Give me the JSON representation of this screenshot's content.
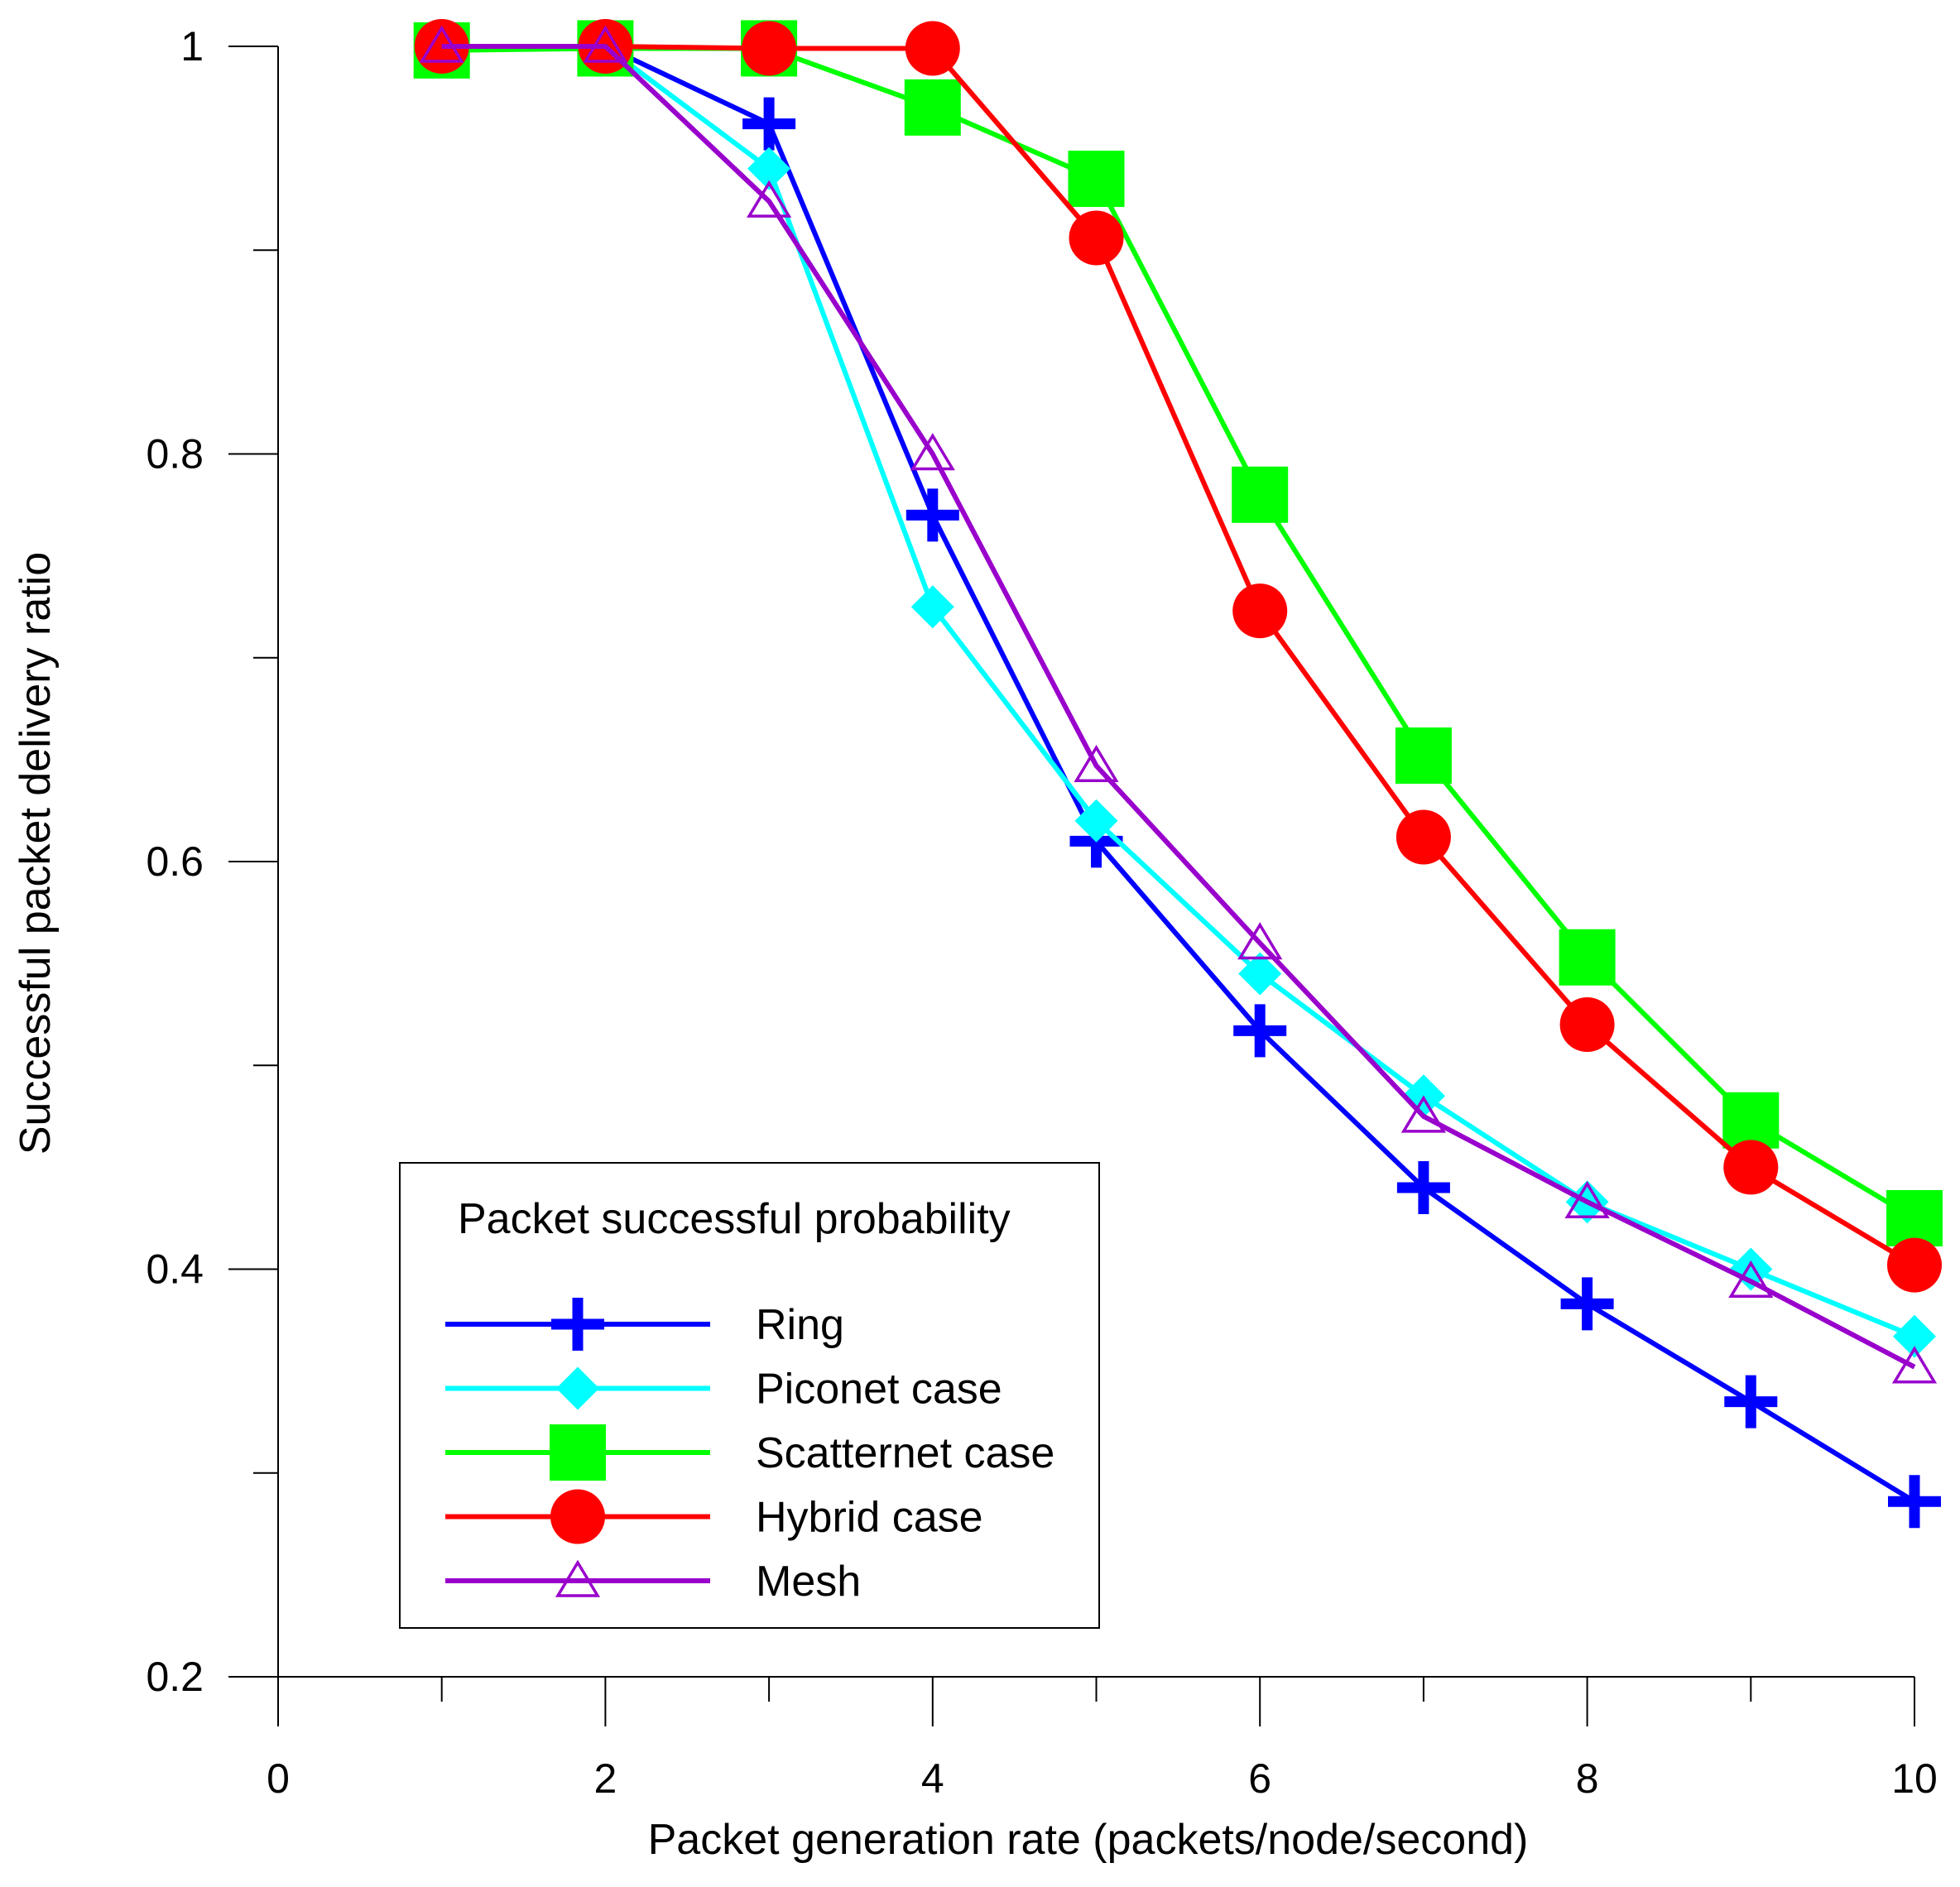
{
  "chart_data": {
    "type": "line",
    "title": "",
    "xlabel": "Packet generation rate (packets/node/second)",
    "ylabel": "Successful packet  delivery ratio",
    "xlim": [
      0,
      10
    ],
    "ylim": [
      0.2,
      1.0
    ],
    "xticks": [
      0,
      2,
      4,
      6,
      8,
      10
    ],
    "xticks_minor": [
      1,
      3,
      5,
      7,
      9
    ],
    "yticks": [
      0.2,
      0.4,
      0.6,
      0.8,
      1
    ],
    "ytick_labels": [
      "0.2",
      "0.4",
      "0.6",
      "0.8",
      "1"
    ],
    "yticks_minor": [
      0.3,
      0.5,
      0.7,
      0.9
    ],
    "grid": false,
    "x": [
      1,
      2,
      3,
      4,
      5,
      6,
      7,
      8,
      9,
      10
    ],
    "legend": {
      "title": "Packet successful probability",
      "placement": "bottom-left"
    },
    "series": [
      {
        "name": "Ring",
        "color": "#0000ff",
        "marker": "plus",
        "values": [
          1.0,
          1.0,
          0.962,
          0.77,
          0.61,
          0.517,
          0.44,
          0.383,
          0.335,
          0.286
        ]
      },
      {
        "name": "Piconet case",
        "color": "#00ffff",
        "marker": "diamond",
        "values": [
          1.0,
          1.0,
          0.94,
          0.725,
          0.62,
          0.545,
          0.485,
          0.433,
          0.4,
          0.367
        ]
      },
      {
        "name": "Scatternet case",
        "color": "#00ff00",
        "marker": "square",
        "values": [
          0.998,
          0.999,
          0.999,
          0.97,
          0.935,
          0.78,
          0.652,
          0.553,
          0.473,
          0.425
        ]
      },
      {
        "name": "Hybrid case",
        "color": "#ff0000",
        "marker": "circle",
        "values": [
          1.0,
          1.0,
          0.999,
          0.999,
          0.906,
          0.723,
          0.612,
          0.52,
          0.45,
          0.402
        ]
      },
      {
        "name": "Mesh",
        "color": "#9900cc",
        "marker": "triangle",
        "values": [
          1.0,
          1.0,
          0.924,
          0.8,
          0.647,
          0.56,
          0.475,
          0.433,
          0.394,
          0.352
        ]
      }
    ]
  }
}
